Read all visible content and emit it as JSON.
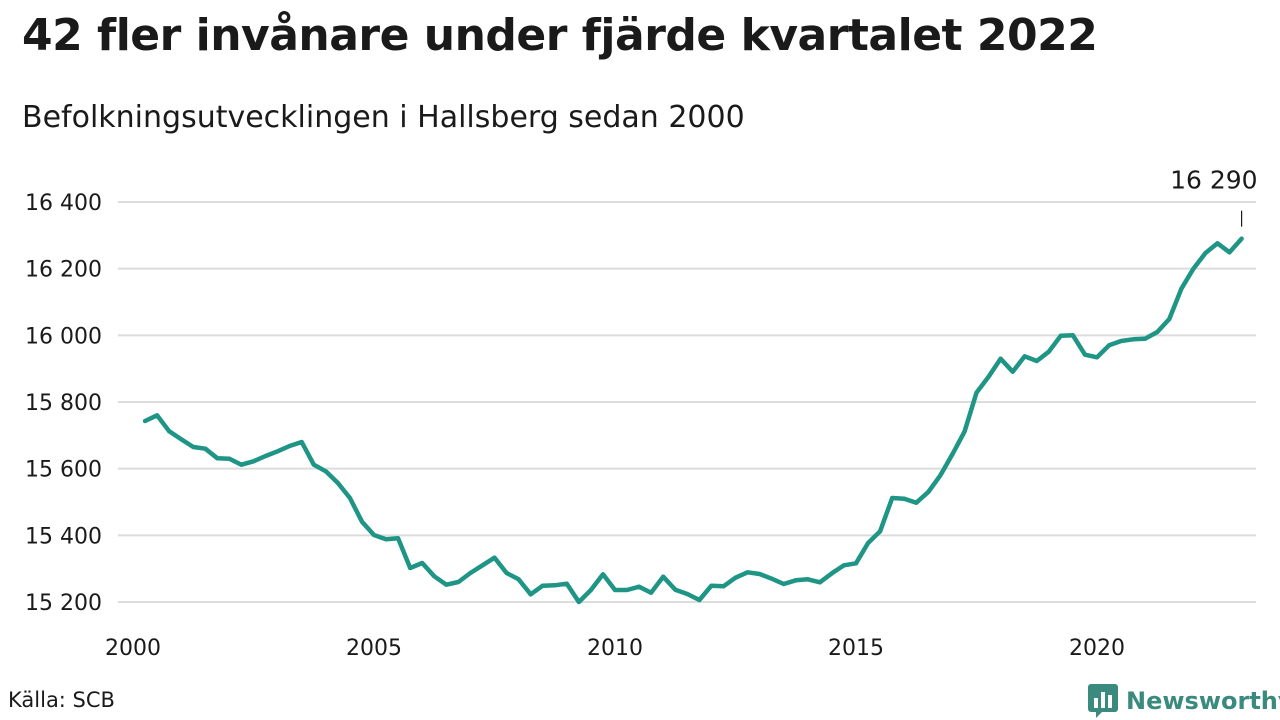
{
  "chart_data": {
    "type": "line",
    "title": "42 fler invånare under fjärde kvartalet 2022",
    "subtitle": "Befolkningsutvecklingen i Hallsberg sedan 2000",
    "xlabel": "",
    "ylabel": "",
    "x_ticks": [
      "2000",
      "2005",
      "2010",
      "2015",
      "2020"
    ],
    "y_ticks": [
      "15 200",
      "15 400",
      "15 600",
      "15 800",
      "16 000",
      "16 200",
      "16 400"
    ],
    "y_tick_values": [
      15200,
      15400,
      15600,
      15800,
      16000,
      16200,
      16400
    ],
    "ylim": [
      15160,
      16440
    ],
    "xlim": [
      2000,
      2023.25
    ],
    "grid": true,
    "line_color": "#1f9585",
    "series": [
      {
        "x": [
          2000.25,
          2000.5,
          2000.75,
          2001.0,
          2001.25,
          2001.5,
          2001.75,
          2002.0,
          2002.25,
          2002.5,
          2002.75,
          2003.0,
          2003.25,
          2003.5,
          2003.75,
          2004.0,
          2004.25,
          2004.5,
          2004.75,
          2005.0,
          2005.25,
          2005.5,
          2005.75,
          2006.0,
          2006.25,
          2006.5,
          2006.75,
          2007.0,
          2007.25,
          2007.5,
          2007.75,
          2008.0,
          2008.25,
          2008.5,
          2008.75,
          2009.0,
          2009.25,
          2009.5,
          2009.75,
          2010.0,
          2010.25,
          2010.5,
          2010.75,
          2011.0,
          2011.25,
          2011.5,
          2011.75,
          2012.0,
          2012.25,
          2012.5,
          2012.75,
          2013.0,
          2013.25,
          2013.5,
          2013.75,
          2014.0,
          2014.25,
          2014.5,
          2014.75,
          2015.0,
          2015.25,
          2015.5,
          2015.75,
          2016.0,
          2016.25,
          2016.5,
          2016.75,
          2017.0,
          2017.25,
          2017.5,
          2017.75,
          2018.0,
          2018.25,
          2018.5,
          2018.75,
          2019.0,
          2019.25,
          2019.5,
          2019.75,
          2020.0,
          2020.25,
          2020.5,
          2020.75,
          2021.0,
          2021.25,
          2021.5,
          2021.75,
          2022.0,
          2022.25,
          2022.5,
          2022.75,
          2023.0
        ],
        "values": [
          15743,
          15760,
          15712,
          15688,
          15665,
          15660,
          15631,
          15630,
          15612,
          15622,
          15638,
          15652,
          15668,
          15680,
          15612,
          15592,
          15557,
          15512,
          15441,
          15401,
          15388,
          15391,
          15302,
          15317,
          15277,
          15252,
          15260,
          15287,
          15310,
          15333,
          15287,
          15268,
          15223,
          15249,
          15250,
          15255,
          15200,
          15236,
          15283,
          15236,
          15236,
          15246,
          15228,
          15276,
          15237,
          15224,
          15206,
          15249,
          15247,
          15273,
          15289,
          15284,
          15270,
          15254,
          15265,
          15268,
          15259,
          15286,
          15310,
          15316,
          15377,
          15412,
          15512,
          15510,
          15498,
          15530,
          15580,
          15643,
          15711,
          15828,
          15876,
          15930,
          15891,
          15937,
          15923,
          15951,
          15999,
          16000,
          15942,
          15934,
          15970,
          15983,
          15988,
          15990,
          16010,
          16049,
          16140,
          16200,
          16247,
          16276,
          16249,
          16290
        ]
      }
    ],
    "annotation": {
      "label": "16 290",
      "x": 2023.0,
      "y": 16290
    }
  },
  "source": "Källa: SCB",
  "brand": {
    "name": "Newsworthy",
    "color": "#3b8a7e"
  }
}
